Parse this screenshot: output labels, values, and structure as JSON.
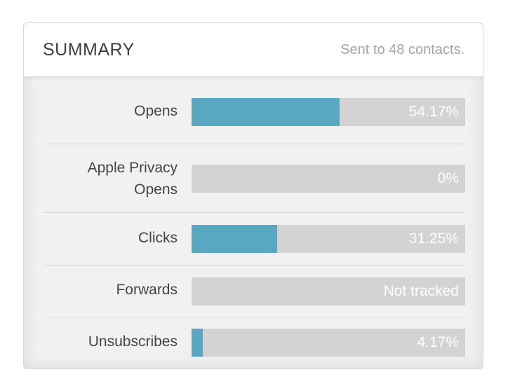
{
  "summary": {
    "title": "SUMMARY",
    "subtitle": "Sent to 48 contacts.",
    "colors": {
      "bar_fill": "#5aa7c2",
      "bar_track": "#d3d3d3"
    },
    "rows": [
      {
        "label": "Opens",
        "value_text": "54.17%",
        "fraction": 0.5417
      },
      {
        "label": "Apple Privacy Opens",
        "value_text": "0%",
        "fraction": 0
      },
      {
        "label": "Clicks",
        "value_text": "31.25%",
        "fraction": 0.3125
      },
      {
        "label": "Forwards",
        "value_text": "Not tracked",
        "fraction": 0
      },
      {
        "label": "Unsubscribes",
        "value_text": "4.17%",
        "fraction": 0.0417
      }
    ]
  }
}
